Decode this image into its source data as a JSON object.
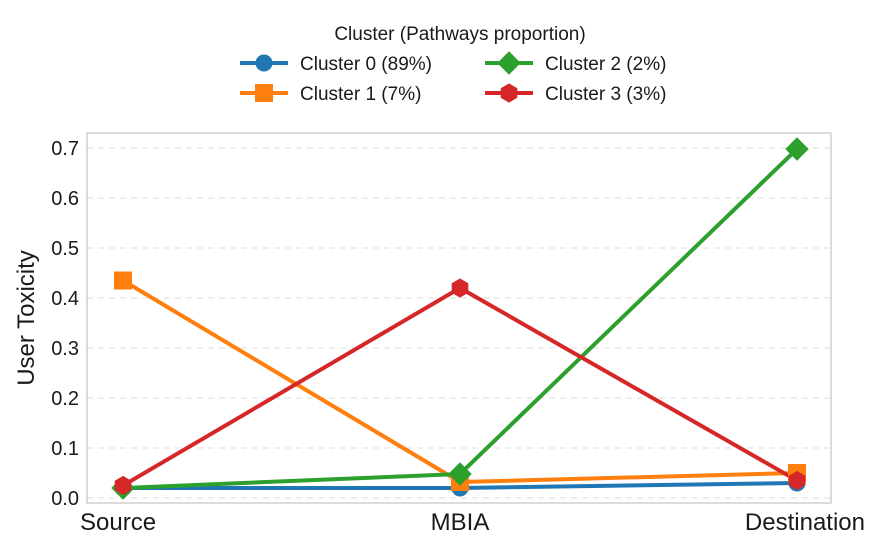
{
  "chart_data": {
    "type": "line",
    "title": "",
    "xlabel": "",
    "ylabel": "User Toxicity",
    "categories": [
      "Source",
      "MBIA",
      "Destination"
    ],
    "ylim": [
      -0.01,
      0.73
    ],
    "yticks": [
      "0.0",
      "0.1",
      "0.2",
      "0.3",
      "0.4",
      "0.5",
      "0.6",
      "0.7"
    ],
    "grid": "horizontal dashed",
    "legend": {
      "title": "Cluster (Pathways proportion)",
      "placement": "top-center, above plot, 2 columns"
    },
    "series": [
      {
        "name": "Cluster 0 (89%)",
        "color": "#1f77b4",
        "marker": "circle",
        "values": [
          0.02,
          0.02,
          0.03
        ]
      },
      {
        "name": "Cluster 1 (7%)",
        "color": "#ff7f0e",
        "marker": "square",
        "values": [
          0.435,
          0.032,
          0.05
        ]
      },
      {
        "name": "Cluster 2 (2%)",
        "color": "#2ca02c",
        "marker": "diamond",
        "values": [
          0.02,
          0.048,
          0.698
        ]
      },
      {
        "name": "Cluster 3 (3%)",
        "color": "#d62728",
        "marker": "hexagon",
        "values": [
          0.025,
          0.42,
          0.035
        ]
      }
    ]
  }
}
